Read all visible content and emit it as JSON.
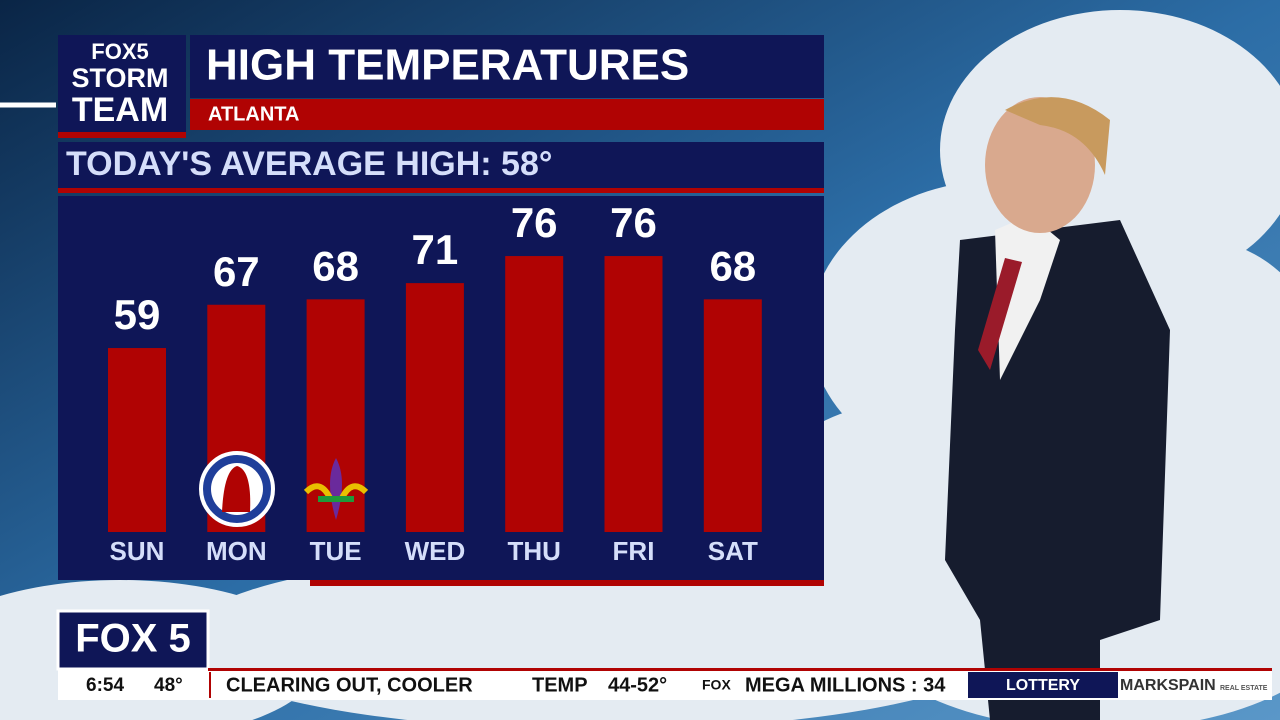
{
  "logo": {
    "line1": "FOX5",
    "line2": "STORM",
    "line3": "TEAM"
  },
  "chart_data": {
    "type": "bar",
    "title": "HIGH TEMPERATURES",
    "subtitle": "ATLANTA",
    "annotation": "TODAY'S AVERAGE HIGH: 58°",
    "categories": [
      "SUN",
      "MON",
      "TUE",
      "WED",
      "THU",
      "FRI",
      "SAT"
    ],
    "values": [
      59,
      67,
      68,
      71,
      76,
      76,
      68
    ],
    "color": "#b00303",
    "ylim": [
      25,
      81
    ]
  },
  "station": "FOX 5",
  "ticker": {
    "time": "6:54",
    "temp": "48°",
    "headline": "CLEARING OUT, COOLER",
    "temp_label": "TEMP",
    "temp_range": "44-52°",
    "fox": "FOX",
    "lottery_item": "MEGA MILLIONS : 34",
    "lottery": "LOTTERY",
    "sponsor": "MARKSPAIN",
    "sponsor_sub": "REAL ESTATE"
  }
}
